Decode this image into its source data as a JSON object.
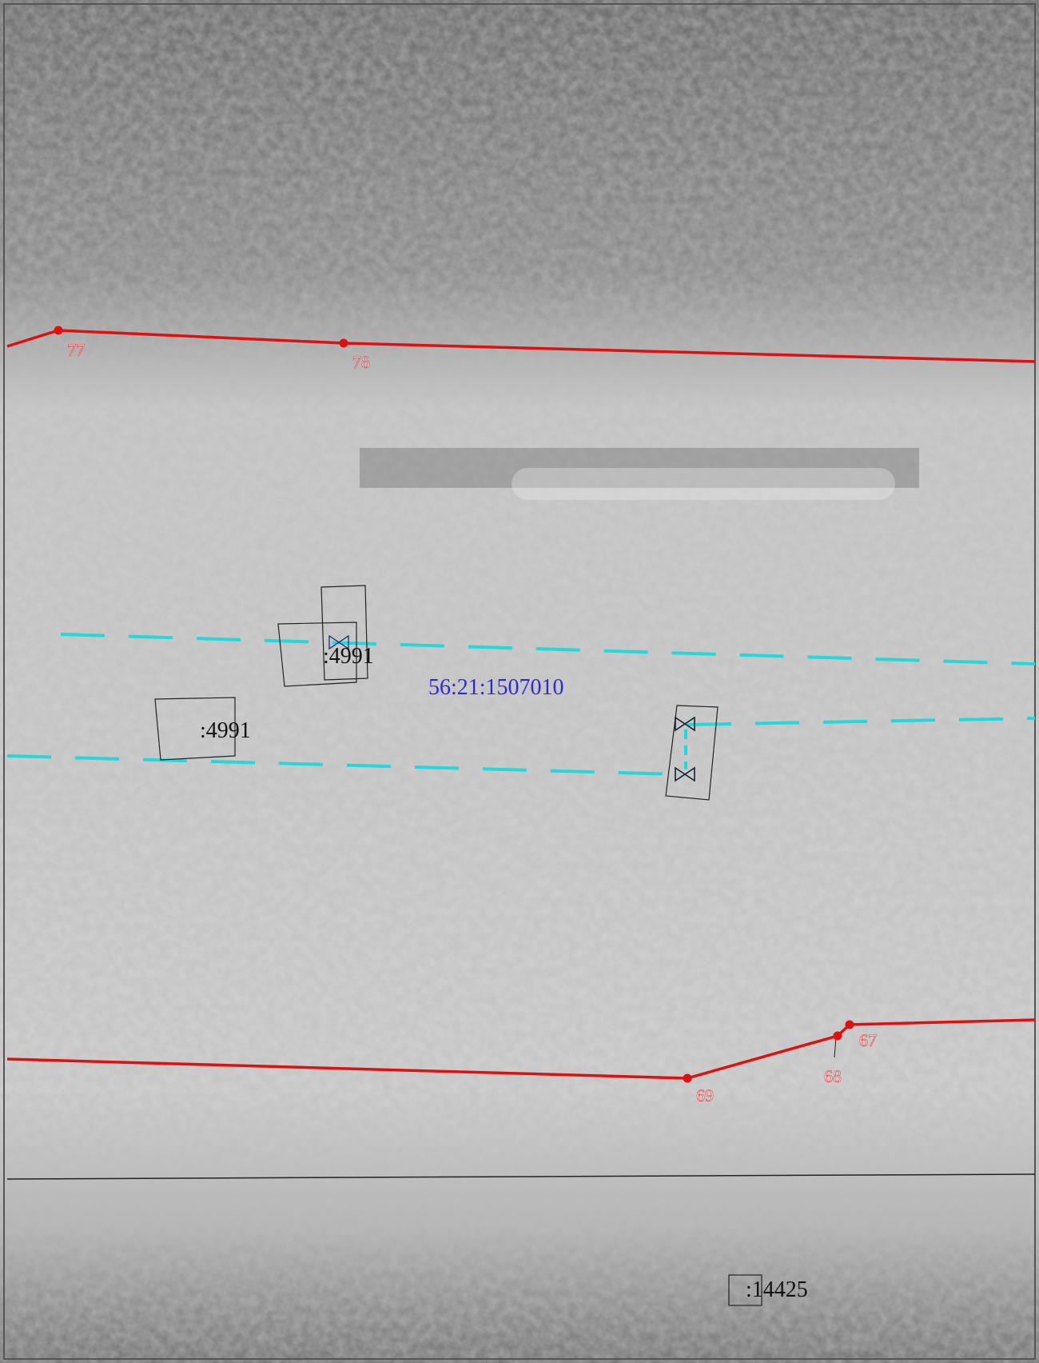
{
  "points": [
    {
      "label": "77"
    },
    {
      "label": "78"
    },
    {
      "label": "69"
    },
    {
      "label": "68"
    },
    {
      "label": "67"
    }
  ],
  "parcels": [
    {
      "label": ":4991"
    },
    {
      "label": ":4991"
    },
    {
      "label": ":14425"
    }
  ],
  "quarter": {
    "label": "56:21:1507010"
  }
}
